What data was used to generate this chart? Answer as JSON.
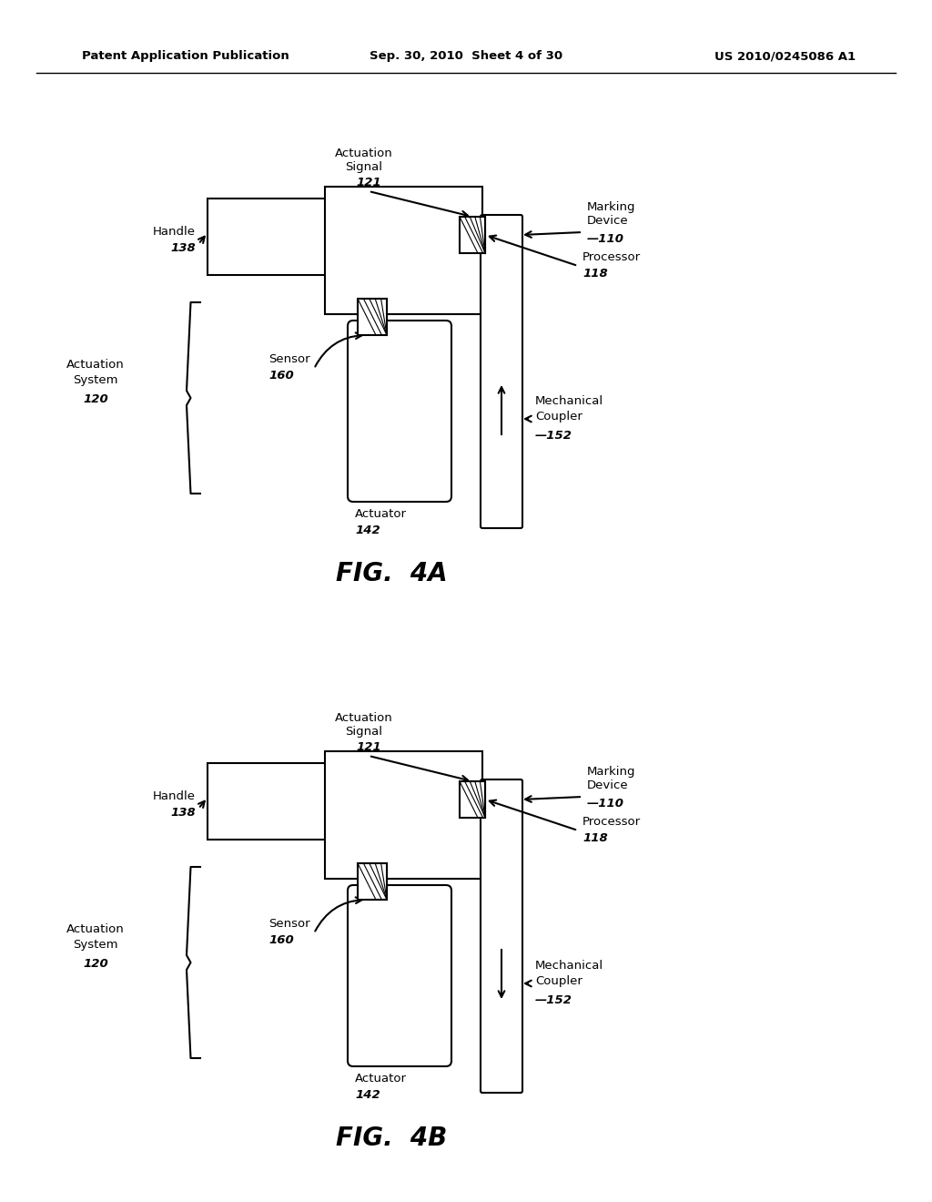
{
  "bg_color": "#ffffff",
  "line_color": "#000000",
  "header_left": "Patent Application Publication",
  "header_mid": "Sep. 30, 2010  Sheet 4 of 30",
  "header_right": "US 2010/0245086 A1",
  "fig4a_label": "FIG.  4A",
  "fig4b_label": "FIG.  4B"
}
